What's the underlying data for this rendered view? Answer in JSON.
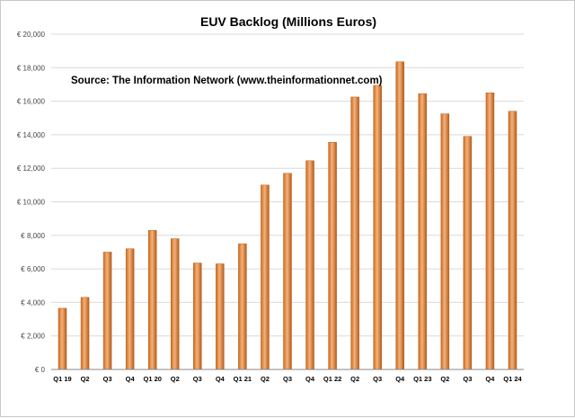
{
  "chart_data": {
    "type": "bar",
    "title": "EUV Backlog (Millions Euros)",
    "annotation": "Source: The Information Network (www.theinformationnet.com)",
    "categories": [
      "Q1 19",
      "Q2",
      "Q3",
      "Q4",
      "Q1 20",
      "Q2",
      "Q3",
      "Q4",
      "Q1 21",
      "Q2",
      "Q3",
      "Q4",
      "Q1 22",
      "Q2",
      "Q3",
      "Q4",
      "Q1 23",
      "Q2",
      "Q3",
      "Q4",
      "Q1 24"
    ],
    "values": [
      3650,
      4300,
      7000,
      7200,
      8300,
      7800,
      6350,
      6300,
      7500,
      11000,
      11700,
      12450,
      13550,
      16250,
      16950,
      18350,
      16450,
      15250,
      13900,
      16500,
      15400
    ],
    "yticks": [
      "€ 0",
      "€ 2,000",
      "€ 4,000",
      "€ 6,000",
      "€ 8,000",
      "€ 10,000",
      "€ 12,000",
      "€ 14,000",
      "€ 16,000",
      "€ 18,000",
      "€ 20,000"
    ],
    "ylim": [
      0,
      20000
    ],
    "ystep": 2000,
    "grid": true,
    "legend": "none",
    "colors": {
      "bar_light": "#f4b183",
      "bar_mid": "#e8893d",
      "bar_dark": "#b8601e",
      "grid": "#d9d9d9",
      "axis": "#888888"
    }
  }
}
